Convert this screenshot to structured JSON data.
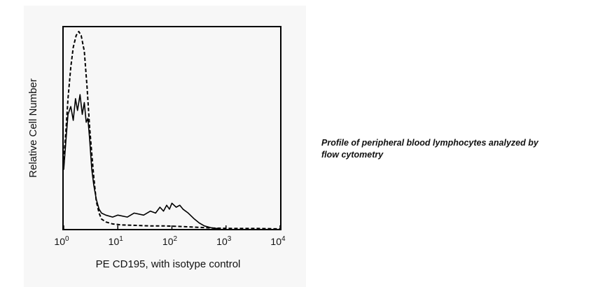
{
  "chart_data": {
    "type": "line",
    "title": "",
    "xlabel": "PE CD195, with isotype control",
    "ylabel": "Relative Cell Number",
    "x_scale": "log",
    "xlim": [
      1,
      10000
    ],
    "ylim": [
      0,
      100
    ],
    "x_ticks": [
      {
        "value": 1,
        "base": "10",
        "exp": "0"
      },
      {
        "value": 10,
        "base": "10",
        "exp": "1"
      },
      {
        "value": 100,
        "base": "10",
        "exp": "2"
      },
      {
        "value": 1000,
        "base": "10",
        "exp": "3"
      },
      {
        "value": 10000,
        "base": "10",
        "exp": "4"
      }
    ],
    "grid": false,
    "legend": "none",
    "series": [
      {
        "style": "solid",
        "color": "#000000",
        "points": [
          [
            1.0,
            30
          ],
          [
            1.1,
            45
          ],
          [
            1.2,
            58
          ],
          [
            1.35,
            62
          ],
          [
            1.5,
            55
          ],
          [
            1.65,
            66
          ],
          [
            1.8,
            60
          ],
          [
            2.0,
            68
          ],
          [
            2.2,
            58
          ],
          [
            2.4,
            64
          ],
          [
            2.6,
            54
          ],
          [
            2.8,
            56
          ],
          [
            3.0,
            46
          ],
          [
            3.3,
            30
          ],
          [
            3.6,
            22
          ],
          [
            4.0,
            15
          ],
          [
            4.5,
            10
          ],
          [
            5.0,
            8
          ],
          [
            6.0,
            7
          ],
          [
            8.0,
            6
          ],
          [
            10,
            7
          ],
          [
            15,
            6
          ],
          [
            20,
            8
          ],
          [
            30,
            7
          ],
          [
            40,
            9
          ],
          [
            50,
            8
          ],
          [
            60,
            11
          ],
          [
            70,
            9
          ],
          [
            80,
            12
          ],
          [
            90,
            10
          ],
          [
            100,
            13
          ],
          [
            120,
            11
          ],
          [
            140,
            12
          ],
          [
            160,
            10
          ],
          [
            200,
            8
          ],
          [
            260,
            5
          ],
          [
            320,
            3
          ],
          [
            400,
            1.5
          ],
          [
            550,
            0.5
          ],
          [
            800,
            0
          ]
        ]
      },
      {
        "style": "dashed",
        "color": "#000000",
        "points": [
          [
            1.0,
            35
          ],
          [
            1.1,
            50
          ],
          [
            1.2,
            66
          ],
          [
            1.35,
            82
          ],
          [
            1.5,
            92
          ],
          [
            1.7,
            98
          ],
          [
            1.9,
            100
          ],
          [
            2.1,
            98
          ],
          [
            2.4,
            90
          ],
          [
            2.7,
            72
          ],
          [
            3.0,
            52
          ],
          [
            3.3,
            38
          ],
          [
            3.6,
            26
          ],
          [
            4.0,
            14
          ],
          [
            4.5,
            8
          ],
          [
            5.0,
            5
          ],
          [
            6.0,
            3.5
          ],
          [
            8.0,
            2.5
          ],
          [
            12,
            2
          ],
          [
            20,
            1.8
          ],
          [
            40,
            1.5
          ],
          [
            80,
            1.5
          ],
          [
            150,
            1.2
          ],
          [
            300,
            0.8
          ],
          [
            600,
            0.4
          ],
          [
            1500,
            0.2
          ],
          [
            4000,
            0.2
          ],
          [
            10000,
            0
          ]
        ]
      }
    ]
  },
  "caption": {
    "line1": "Profile of peripheral blood lymphocytes analyzed by",
    "line2": "flow cytometry"
  }
}
